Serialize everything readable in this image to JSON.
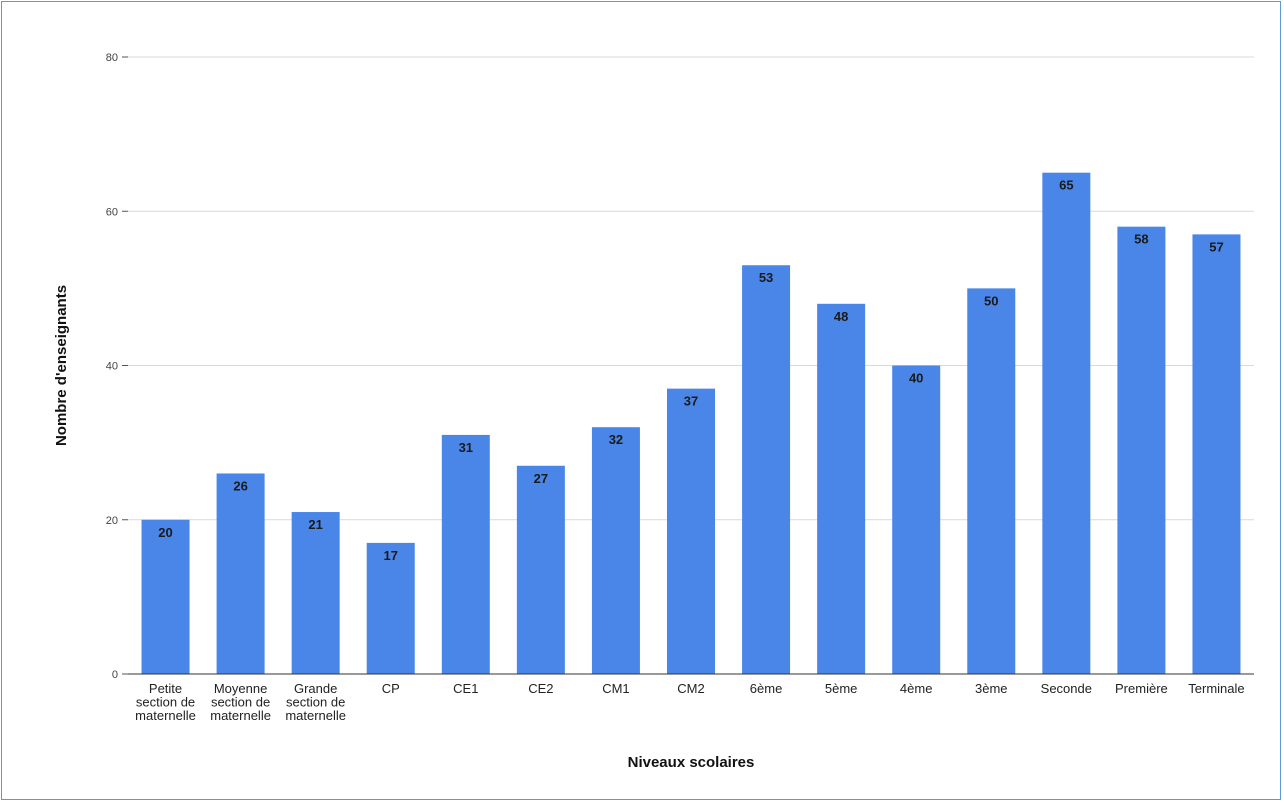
{
  "chart_data": {
    "type": "bar",
    "title": "",
    "xlabel": "Niveaux scolaires",
    "ylabel": "Nombre d'enseignants",
    "ylim": [
      0,
      80
    ],
    "yticks": [
      0,
      20,
      40,
      60,
      80
    ],
    "grid": true,
    "legend": "none",
    "bar_color": "#4a86e8",
    "categories": [
      "Petite section de maternelle",
      "Moyenne section de maternelle",
      "Grande section de maternelle",
      "CP",
      "CE1",
      "CE2",
      "CM1",
      "CM2",
      "6ème",
      "5ème",
      "4ème",
      "3ème",
      "Seconde",
      "Première",
      "Terminale"
    ],
    "category_label_lines": [
      [
        "Petite",
        "section de",
        "maternelle"
      ],
      [
        "Moyenne",
        "section de",
        "maternelle"
      ],
      [
        "Grande",
        "section de",
        "maternelle"
      ],
      [
        "CP"
      ],
      [
        "CE1"
      ],
      [
        "CE2"
      ],
      [
        "CM1"
      ],
      [
        "CM2"
      ],
      [
        "6ème"
      ],
      [
        "5ème"
      ],
      [
        "4ème"
      ],
      [
        "3ème"
      ],
      [
        "Seconde"
      ],
      [
        "Première"
      ],
      [
        "Terminale"
      ]
    ],
    "values": [
      20,
      26,
      21,
      17,
      31,
      27,
      32,
      37,
      53,
      48,
      40,
      50,
      65,
      58,
      57
    ]
  }
}
